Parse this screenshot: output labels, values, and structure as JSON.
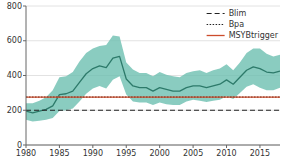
{
  "chart_data": {
    "type": "line",
    "x": [
      1980,
      1981,
      1982,
      1983,
      1984,
      1985,
      1986,
      1987,
      1988,
      1989,
      1990,
      1991,
      1992,
      1993,
      1994,
      1995,
      1996,
      1997,
      1998,
      1999,
      2000,
      2001,
      2002,
      2003,
      2004,
      2005,
      2006,
      2007,
      2008,
      2009,
      2010,
      2011,
      2012,
      2013,
      2014,
      2015,
      2016,
      2017,
      2018
    ],
    "series": [
      {
        "type": "area",
        "color": "#6dbfb0",
        "upper": [
          240,
          240,
          255,
          275,
          315,
          390,
          395,
          420,
          480,
          530,
          555,
          570,
          575,
          630,
          625,
          475,
          435,
          415,
          415,
          395,
          420,
          405,
          395,
          390,
          415,
          425,
          430,
          415,
          430,
          440,
          465,
          430,
          475,
          530,
          555,
          555,
          525,
          510,
          520
        ],
        "lower": [
          145,
          135,
          140,
          145,
          155,
          195,
          200,
          210,
          250,
          295,
          325,
          340,
          325,
          375,
          395,
          290,
          250,
          245,
          245,
          230,
          245,
          235,
          230,
          230,
          250,
          260,
          255,
          248,
          255,
          260,
          280,
          265,
          300,
          335,
          350,
          330,
          315,
          315,
          330
        ]
      },
      {
        "type": "line",
        "color": "#2d7a6a",
        "values": [
          195,
          185,
          195,
          205,
          225,
          290,
          295,
          310,
          360,
          410,
          440,
          455,
          445,
          500,
          510,
          380,
          340,
          330,
          330,
          310,
          330,
          320,
          310,
          310,
          330,
          340,
          340,
          330,
          340,
          350,
          375,
          350,
          390,
          430,
          450,
          440,
          420,
          415,
          425
        ]
      }
    ],
    "reference_lines": [
      {
        "name": "Blim",
        "value": 200,
        "color": "#222222",
        "line_style": "dashed"
      },
      {
        "name": "Bpa",
        "value": 275,
        "color": "#222222",
        "line_style": "dotted"
      },
      {
        "name": "MSYBtrigger",
        "value": 275,
        "color": "#cc4c2c",
        "line_style": "solid"
      }
    ],
    "xlim": [
      1980,
      2018
    ],
    "ylim": [
      0,
      800
    ],
    "xticks": [
      1980,
      1985,
      1990,
      1995,
      2000,
      2005,
      2010,
      2015
    ],
    "yticks": [
      0,
      200,
      400,
      600,
      800
    ],
    "grid": "y",
    "legend": "upper right"
  }
}
